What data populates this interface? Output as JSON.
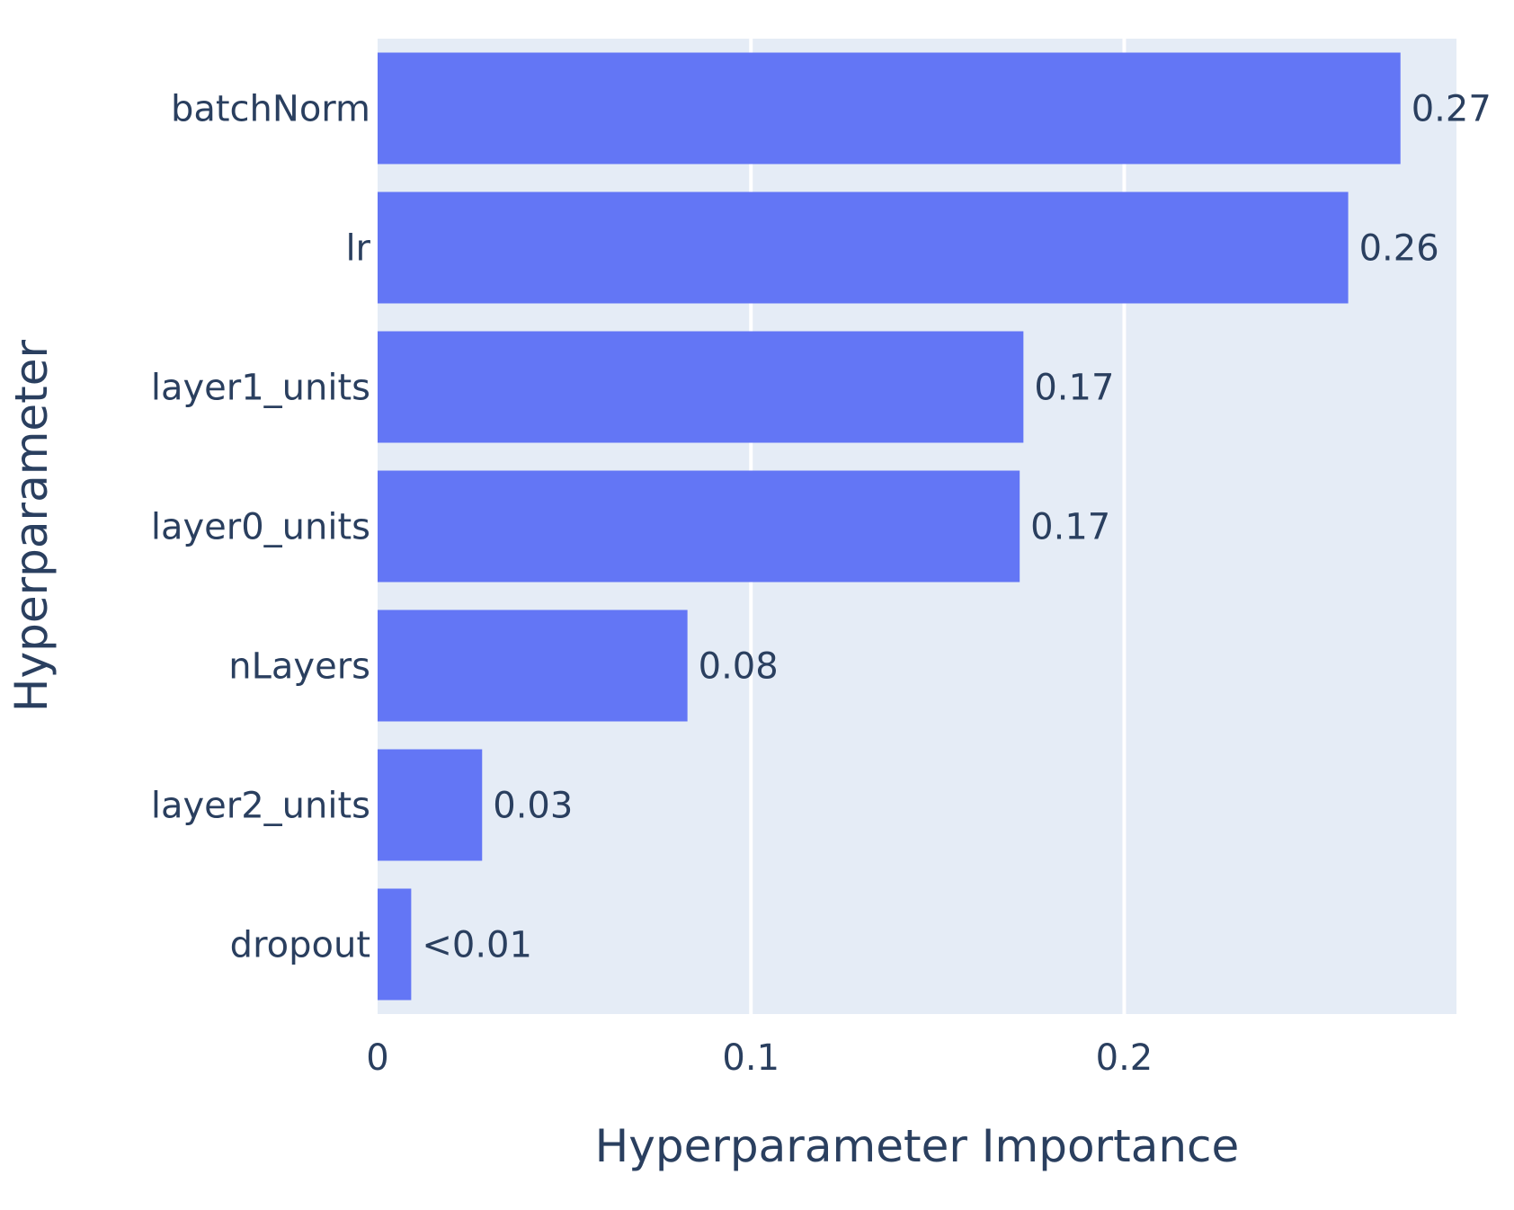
{
  "chart_data": {
    "type": "bar",
    "orientation": "horizontal",
    "categories": [
      "batchNorm",
      "lr",
      "layer1_units",
      "layer0_units",
      "nLayers",
      "layer2_units",
      "dropout"
    ],
    "values": [
      0.274,
      0.26,
      0.173,
      0.172,
      0.083,
      0.028,
      0.009
    ],
    "data_labels": [
      "0.27",
      "0.26",
      "0.17",
      "0.17",
      "0.08",
      "0.03",
      "<0.01"
    ],
    "xlabel": "Hyperparameter Importance",
    "ylabel": "Hyperparameter",
    "xlim": [
      0,
      0.289
    ],
    "xticks": [
      0,
      0.1,
      0.2
    ],
    "xtick_labels": [
      "0",
      "0.1",
      "0.2"
    ],
    "grid": "vertical",
    "legend": "none",
    "colors": {
      "bar": "#6376f5",
      "plot_background": "#e5ecf6",
      "gridline": "#ffffff",
      "text": "#2a3f5f"
    }
  }
}
